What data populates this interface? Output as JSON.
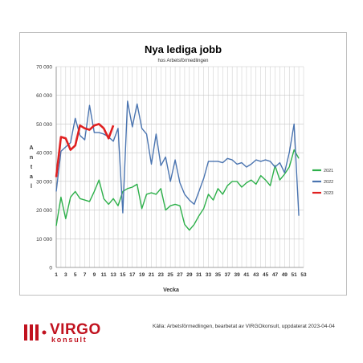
{
  "colors": {
    "s2021": "#2db04a",
    "s2022": "#4a74b0",
    "s2023": "#e02020",
    "grid": "#c8c8c8",
    "brand": "#c1121f"
  },
  "logo": {
    "brand": "VIRGO",
    "sub": "konsult"
  },
  "source": "Källa: Arbetsförmedlingen, bearbetat av VIRGOkonsult, uppdaterat 2023-04-04",
  "chart_data": {
    "type": "line",
    "title": "Nya lediga jobb",
    "subtitle": "hos Arbetsförmedlingen",
    "xlabel": "Vecka",
    "ylabel": "Antal",
    "ylim": [
      0,
      70000
    ],
    "yticks": [
      "0",
      "10 000",
      "20 000",
      "30 000",
      "40 000",
      "50 000",
      "60 000",
      "70 000"
    ],
    "xticks": [
      1,
      3,
      5,
      7,
      9,
      11,
      13,
      15,
      17,
      19,
      21,
      23,
      25,
      27,
      29,
      31,
      33,
      35,
      37,
      39,
      41,
      43,
      45,
      47,
      49,
      51,
      53
    ],
    "grid": true,
    "legend_position": "right",
    "series": [
      {
        "name": "2021",
        "color_key": "s2021",
        "x": [
          1,
          2,
          3,
          4,
          5,
          6,
          7,
          8,
          9,
          10,
          11,
          12,
          13,
          14,
          15,
          16,
          17,
          18,
          19,
          20,
          21,
          22,
          23,
          24,
          25,
          26,
          27,
          28,
          29,
          30,
          31,
          32,
          33,
          34,
          35,
          36,
          37,
          38,
          39,
          40,
          41,
          42,
          43,
          44,
          45,
          46,
          47,
          48,
          49,
          50,
          51,
          52
        ],
        "values": [
          14500,
          24500,
          17000,
          24500,
          26500,
          24000,
          23500,
          23000,
          26500,
          30500,
          24000,
          22000,
          24000,
          21500,
          26500,
          27500,
          28000,
          29000,
          20500,
          25500,
          26000,
          25500,
          27500,
          20000,
          21500,
          22000,
          21500,
          15000,
          13000,
          15000,
          18000,
          20500,
          25500,
          23500,
          27500,
          25500,
          28500,
          30000,
          30000,
          28000,
          29500,
          30500,
          29000,
          32000,
          30500,
          28500,
          35500,
          30500,
          32500,
          35000,
          41000,
          38000
        ]
      },
      {
        "name": "2022",
        "color_key": "s2022",
        "x": [
          1,
          2,
          3,
          4,
          5,
          6,
          7,
          8,
          9,
          10,
          11,
          12,
          13,
          14,
          15,
          16,
          17,
          18,
          19,
          20,
          21,
          22,
          23,
          24,
          25,
          26,
          27,
          28,
          29,
          30,
          31,
          32,
          33,
          34,
          35,
          36,
          37,
          38,
          39,
          40,
          41,
          42,
          43,
          44,
          45,
          46,
          47,
          48,
          49,
          50,
          51,
          52
        ],
        "values": [
          26500,
          40500,
          42000,
          43500,
          52000,
          46000,
          44500,
          56500,
          47000,
          47000,
          46500,
          45500,
          44000,
          48500,
          19000,
          58000,
          49000,
          57000,
          48500,
          46500,
          36000,
          46500,
          35500,
          38500,
          30000,
          37500,
          29500,
          25500,
          23500,
          22000,
          26500,
          31000,
          37000,
          37000,
          37000,
          36500,
          38000,
          37500,
          36000,
          36500,
          35000,
          36000,
          37500,
          37000,
          37500,
          37000,
          35000,
          36500,
          33000,
          40000,
          50000,
          18000
        ]
      },
      {
        "name": "2023",
        "color_key": "s2023",
        "x": [
          1,
          2,
          3,
          4,
          5,
          6,
          7,
          8,
          9,
          10,
          11,
          12,
          13
        ],
        "values": [
          31500,
          45500,
          45000,
          41000,
          42500,
          49500,
          48500,
          48000,
          49500,
          50000,
          48500,
          45000,
          49500
        ]
      }
    ]
  }
}
